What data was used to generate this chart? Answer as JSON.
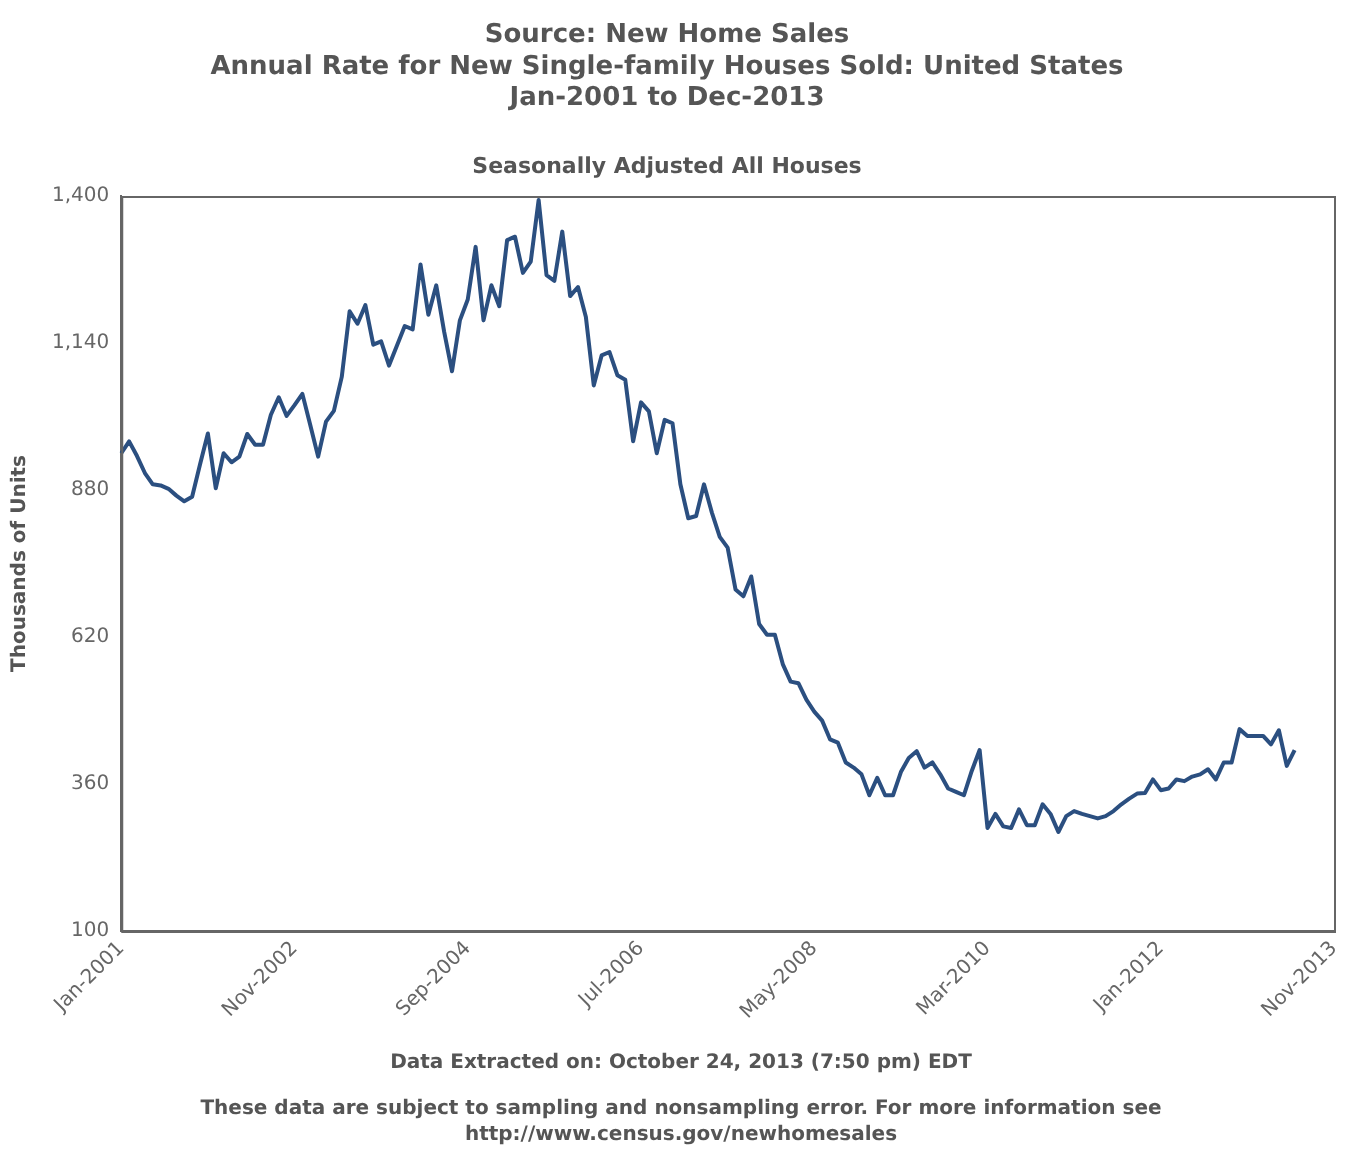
{
  "chart_data": {
    "type": "line",
    "title": "Source: New Home Sales\nAnnual Rate for New Single-family Houses Sold: United States\nJan-2001 to Dec-2013",
    "subtitle": "Seasonally Adjusted All Houses",
    "ylabel": "Thousands of Units",
    "categories": [
      "Jan-2001",
      null,
      null,
      null,
      null,
      null,
      null,
      null,
      null,
      null,
      null,
      null,
      null,
      null,
      null,
      null,
      null,
      null,
      null,
      null,
      null,
      null,
      "Nov-2002",
      null,
      null,
      null,
      null,
      null,
      null,
      null,
      null,
      null,
      null,
      null,
      null,
      null,
      null,
      null,
      null,
      null,
      null,
      null,
      null,
      null,
      "Sep-2004",
      null,
      null,
      null,
      null,
      null,
      null,
      null,
      null,
      null,
      null,
      null,
      null,
      null,
      null,
      null,
      null,
      null,
      null,
      null,
      null,
      null,
      "Jul-2006",
      null,
      null,
      null,
      null,
      null,
      null,
      null,
      null,
      null,
      null,
      null,
      null,
      null,
      null,
      null,
      null,
      null,
      null,
      null,
      null,
      null,
      "May-2008",
      null,
      null,
      null,
      null,
      null,
      null,
      null,
      null,
      null,
      null,
      null,
      null,
      null,
      null,
      null,
      null,
      null,
      null,
      null,
      null,
      null,
      "Mar-2010",
      null,
      null,
      null,
      null,
      null,
      null,
      null,
      null,
      null,
      null,
      null,
      null,
      null,
      null,
      null,
      null,
      null,
      null,
      null,
      null,
      null,
      "Jan-2012",
      null,
      null,
      null,
      null,
      null,
      null,
      null,
      null,
      null,
      null,
      null,
      null,
      null,
      null,
      null,
      null,
      null,
      null,
      null,
      null,
      null,
      "Nov-2013"
    ],
    "values": [
      945,
      966,
      940,
      910,
      890,
      888,
      882,
      870,
      860,
      868,
      925,
      980,
      883,
      945,
      929,
      939,
      979,
      960,
      960,
      1013,
      1044,
      1011,
      1030,
      1050,
      995,
      939,
      1001,
      1020,
      1080,
      1196,
      1174,
      1207,
      1137,
      1143,
      1100,
      1135,
      1170,
      1164,
      1279,
      1190,
      1242,
      1160,
      1090,
      1180,
      1217,
      1310,
      1180,
      1242,
      1205,
      1322,
      1328,
      1264,
      1284,
      1393,
      1260,
      1250,
      1337,
      1223,
      1239,
      1186,
      1065,
      1118,
      1124,
      1083,
      1075,
      966,
      1035,
      1019,
      945,
      1004,
      998,
      890,
      830,
      834,
      890,
      840,
      797,
      778,
      704,
      692,
      727,
      643,
      624,
      624,
      572,
      541,
      538,
      509,
      488,
      472,
      439,
      433,
      398,
      389,
      377,
      340,
      371,
      340,
      340,
      381,
      406,
      418,
      389,
      398,
      377,
      352,
      346,
      340,
      383,
      420,
      282,
      307,
      285,
      282,
      315,
      287,
      287,
      324,
      307,
      275,
      303,
      312,
      307,
      303,
      299,
      303,
      312,
      324,
      334,
      343,
      344,
      368,
      349,
      352,
      368,
      365,
      373,
      377,
      386,
      368,
      398,
      398,
      457,
      445,
      445,
      445,
      430,
      455,
      392,
      420,
      null,
      null,
      null,
      null,
      null
    ],
    "color": "#2b4f80",
    "ylim": [
      100,
      1400
    ],
    "yticks": [
      100,
      360,
      620,
      880,
      {
        "value": 1140,
        "label": "1,140"
      },
      {
        "value": 1400,
        "label": "1,400"
      }
    ],
    "annotations": [
      "Data Extracted on: October 24, 2013 (7:50 pm) EDT",
      "These data are subject to sampling and nonsampling error. For more information see\nhttp://www.census.gov/newhomesales"
    ]
  }
}
